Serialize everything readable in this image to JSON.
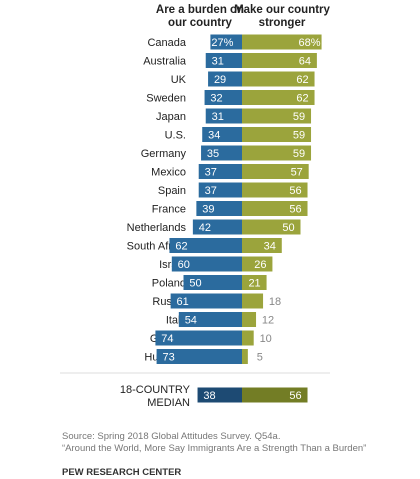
{
  "chart_data": {
    "type": "diverging-bar",
    "categories": [
      "Canada",
      "Australia",
      "UK",
      "Sweden",
      "Japan",
      "U.S.",
      "Germany",
      "Mexico",
      "Spain",
      "France",
      "Netherlands",
      "South Africa",
      "Israel",
      "Poland",
      "Russia",
      "Italy",
      "Greece",
      "Hungary"
    ],
    "series": [
      {
        "name": "Are a burden on our country",
        "color": "#2b6b9e",
        "side": "left",
        "values": [
          27,
          31,
          29,
          32,
          31,
          34,
          35,
          37,
          37,
          39,
          42,
          62,
          60,
          50,
          61,
          54,
          74,
          73
        ],
        "value_labels": [
          "27%",
          "31",
          "29",
          "32",
          "31",
          "34",
          "35",
          "37",
          "37",
          "39",
          "42",
          "62",
          "60",
          "50",
          "61",
          "54",
          "74",
          "73"
        ]
      },
      {
        "name": "Make our country stronger",
        "color": "#9ba43c",
        "side": "right",
        "values": [
          68,
          64,
          62,
          62,
          59,
          59,
          59,
          57,
          56,
          56,
          50,
          34,
          26,
          21,
          18,
          12,
          10,
          5
        ],
        "value_labels": [
          "68%",
          "64",
          "62",
          "62",
          "59",
          "59",
          "59",
          "57",
          "56",
          "56",
          "50",
          "34",
          "26",
          "21",
          "18",
          "12",
          "10",
          "5"
        ]
      }
    ],
    "median": {
      "label": "18-COUNTRY MEDIAN",
      "values": [
        38,
        56
      ],
      "colors": [
        "#1d4a73",
        "#737d25"
      ]
    },
    "source": "Source: Spring 2018 Global Attitudes Survey. Q54a.",
    "report": "“Around the World, More Say Immigrants Are a Strength Than a Burden”",
    "credit": "PEW RESEARCH CENTER"
  }
}
